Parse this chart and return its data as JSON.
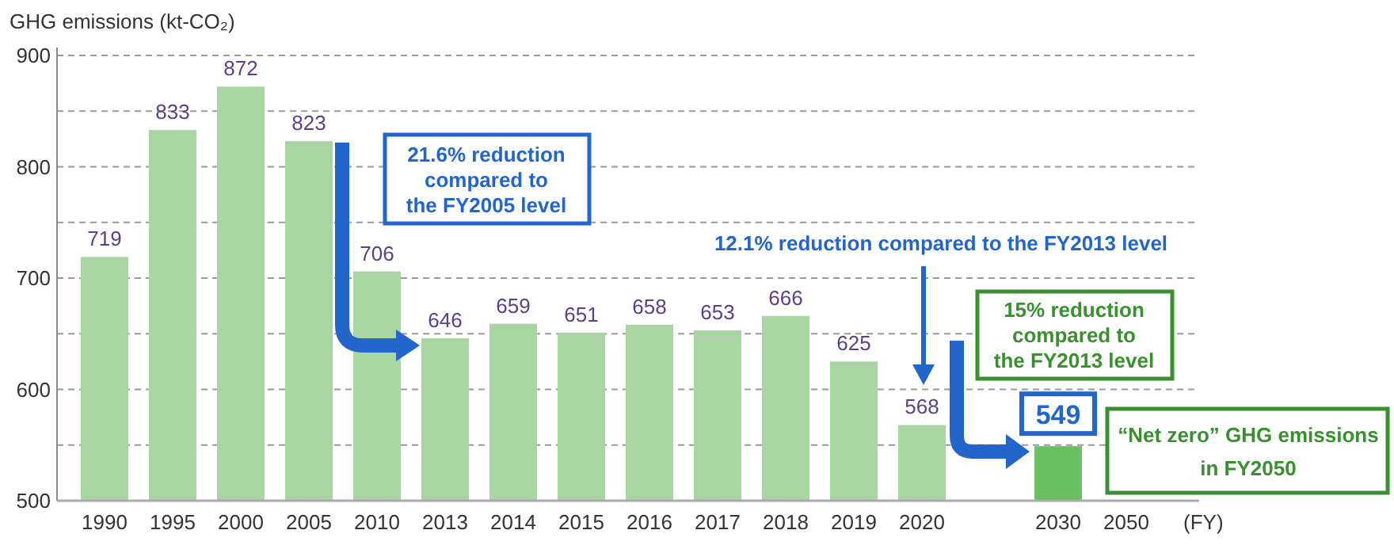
{
  "chart_data": {
    "type": "bar",
    "ylabel": "GHG emissions (kt-CO₂)",
    "xlabel": "(FY)",
    "categories": [
      "1990",
      "1995",
      "2000",
      "2005",
      "2010",
      "2013",
      "2014",
      "2015",
      "2016",
      "2017",
      "2018",
      "2019",
      "2020",
      null,
      "2030",
      "2050"
    ],
    "values": [
      719,
      833,
      872,
      823,
      706,
      646,
      659,
      651,
      658,
      653,
      666,
      625,
      568,
      null,
      549,
      null
    ],
    "colors": [
      "#a8d5a2",
      "#a8d5a2",
      "#a8d5a2",
      "#a8d5a2",
      "#a8d5a2",
      "#a8d5a2",
      "#a8d5a2",
      "#a8d5a2",
      "#a8d5a2",
      "#a8d5a2",
      "#a8d5a2",
      "#a8d5a2",
      "#a8d5a2",
      null,
      "#6abf63",
      null
    ],
    "ylim": [
      500,
      900
    ],
    "yticks": [
      500,
      {
        "value": 550,
        "label": null
      },
      600,
      {
        "value": 650,
        "label": null
      },
      700,
      {
        "value": 750,
        "label": null
      },
      800,
      {
        "value": 850,
        "label": null
      },
      900
    ],
    "grid": "y",
    "data_labels": true,
    "annotations": [
      "21.6% reduction\ncompared to\nthe FY2005 level",
      "12.1% reduction compared to the FY2013 level",
      "15% reduction\ncompared to\nthe FY2013 level",
      "“Net zero” GHG emissions\nin FY2050"
    ]
  }
}
